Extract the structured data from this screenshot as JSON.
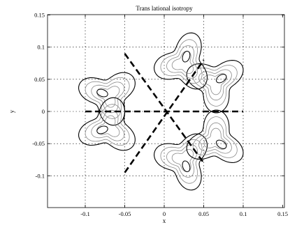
{
  "chart_data": {
    "type": "contour",
    "title": "Trans lational isotropy",
    "xlabel": "x",
    "ylabel": "y",
    "xlim": [
      -0.15,
      0.15
    ],
    "ylim": [
      -0.15,
      0.15
    ],
    "xticks": [
      -0.1,
      -0.05,
      0,
      0.05,
      0.1,
      0.15
    ],
    "yticks": [
      -0.1,
      -0.05,
      0,
      0.05,
      0.1,
      0.15
    ],
    "xtick_labels": [
      "-0.1",
      "-0.05",
      "0",
      "0.05",
      "0.1",
      "0.15"
    ],
    "ytick_labels": [
      "-0.1",
      "-0.05",
      "0",
      "0.05",
      "0.1",
      "0.15"
    ],
    "grid": true,
    "grid_style": "dotted",
    "symmetry_lines": [
      {
        "x": [
          -0.1,
          0.1
        ],
        "y": [
          0,
          0
        ]
      },
      {
        "x": [
          -0.05,
          0.05
        ],
        "y": [
          -0.095,
          0.08
        ]
      },
      {
        "x": [
          -0.05,
          0.05
        ],
        "y": [
          0.09,
          -0.08
        ]
      }
    ],
    "lobes": [
      {
        "center": [
          0.065,
          0.045
        ]
      },
      {
        "center": [
          0.025,
          0.075
        ]
      },
      {
        "center": [
          -0.07,
          0.025
        ]
      },
      {
        "center": [
          -0.07,
          -0.025
        ]
      },
      {
        "center": [
          0.025,
          -0.075
        ]
      },
      {
        "center": [
          0.065,
          -0.045
        ]
      }
    ],
    "colors": {
      "outer_contour": "#000000",
      "inner_contours": "#8a8a8a",
      "symmetry_lines": "#000000"
    }
  }
}
